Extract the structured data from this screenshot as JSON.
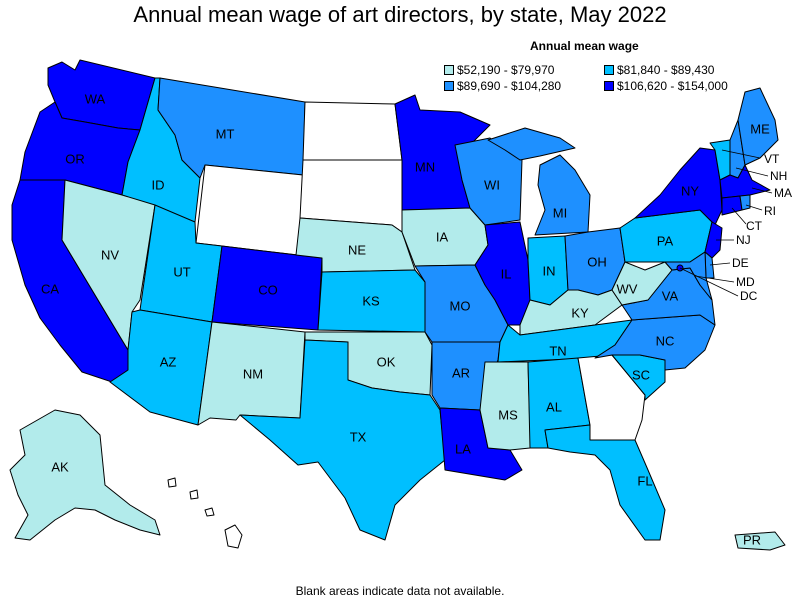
{
  "title": "Annual mean wage of art directors, by state, May 2022",
  "legend": {
    "title": "Annual mean wage",
    "items": [
      {
        "label": "$52,190 - $79,970",
        "color": "#b2ebeb"
      },
      {
        "label": "$81,840 - $89,430",
        "color": "#00bfff"
      },
      {
        "label": "$89,690 - $104,280",
        "color": "#1e90ff"
      },
      {
        "label": "$106,620 - $154,000",
        "color": "#0000ff"
      }
    ]
  },
  "footnote": "Blank areas indicate data not available.",
  "colors": {
    "tier1": "#b2ebeb",
    "tier2": "#00bfff",
    "tier3": "#1e90ff",
    "tier4": "#0000ff",
    "nodata": "#ffffff"
  },
  "states": {
    "WA": {
      "label": "WA",
      "tier": 4
    },
    "OR": {
      "label": "OR",
      "tier": 4
    },
    "CA": {
      "label": "CA",
      "tier": 4
    },
    "ID": {
      "label": "ID",
      "tier": 2
    },
    "NV": {
      "label": "NV",
      "tier": 1
    },
    "MT": {
      "label": "MT",
      "tier": 3
    },
    "WY": {
      "label": "",
      "tier": 0
    },
    "UT": {
      "label": "UT",
      "tier": 2
    },
    "CO": {
      "label": "CO",
      "tier": 4
    },
    "AZ": {
      "label": "AZ",
      "tier": 2
    },
    "NM": {
      "label": "NM",
      "tier": 1
    },
    "ND": {
      "label": "",
      "tier": 0
    },
    "SD": {
      "label": "",
      "tier": 0
    },
    "NE": {
      "label": "NE",
      "tier": 1
    },
    "KS": {
      "label": "KS",
      "tier": 2
    },
    "OK": {
      "label": "OK",
      "tier": 1
    },
    "TX": {
      "label": "TX",
      "tier": 2
    },
    "MN": {
      "label": "MN",
      "tier": 4
    },
    "IA": {
      "label": "IA",
      "tier": 1
    },
    "MO": {
      "label": "MO",
      "tier": 3
    },
    "AR": {
      "label": "AR",
      "tier": 3
    },
    "LA": {
      "label": "LA",
      "tier": 4
    },
    "WI": {
      "label": "WI",
      "tier": 3
    },
    "IL": {
      "label": "IL",
      "tier": 4
    },
    "MI": {
      "label": "MI",
      "tier": 3
    },
    "IN": {
      "label": "IN",
      "tier": 2
    },
    "OH": {
      "label": "OH",
      "tier": 3
    },
    "KY": {
      "label": "KY",
      "tier": 1
    },
    "TN": {
      "label": "TN",
      "tier": 2
    },
    "MS": {
      "label": "MS",
      "tier": 1
    },
    "AL": {
      "label": "AL",
      "tier": 2
    },
    "GA": {
      "label": "",
      "tier": 0
    },
    "FL": {
      "label": "FL",
      "tier": 2
    },
    "SC": {
      "label": "SC",
      "tier": 2
    },
    "NC": {
      "label": "NC",
      "tier": 3
    },
    "VA": {
      "label": "VA",
      "tier": 3
    },
    "WV": {
      "label": "WV",
      "tier": 1
    },
    "PA": {
      "label": "PA",
      "tier": 2
    },
    "NY": {
      "label": "NY",
      "tier": 4
    },
    "VT": {
      "label": "VT",
      "tier": 2
    },
    "NH": {
      "label": "NH",
      "tier": 3
    },
    "ME": {
      "label": "ME",
      "tier": 3
    },
    "MA": {
      "label": "MA",
      "tier": 4
    },
    "RI": {
      "label": "RI",
      "tier": 3
    },
    "CT": {
      "label": "CT",
      "tier": 4
    },
    "NJ": {
      "label": "NJ",
      "tier": 4
    },
    "DE": {
      "label": "DE",
      "tier": 3
    },
    "MD": {
      "label": "MD",
      "tier": 3
    },
    "DC": {
      "label": "DC",
      "tier": 4
    },
    "AK": {
      "label": "AK",
      "tier": 1
    },
    "HI": {
      "label": "",
      "tier": 0
    },
    "PR": {
      "label": "PR",
      "tier": 1
    }
  }
}
